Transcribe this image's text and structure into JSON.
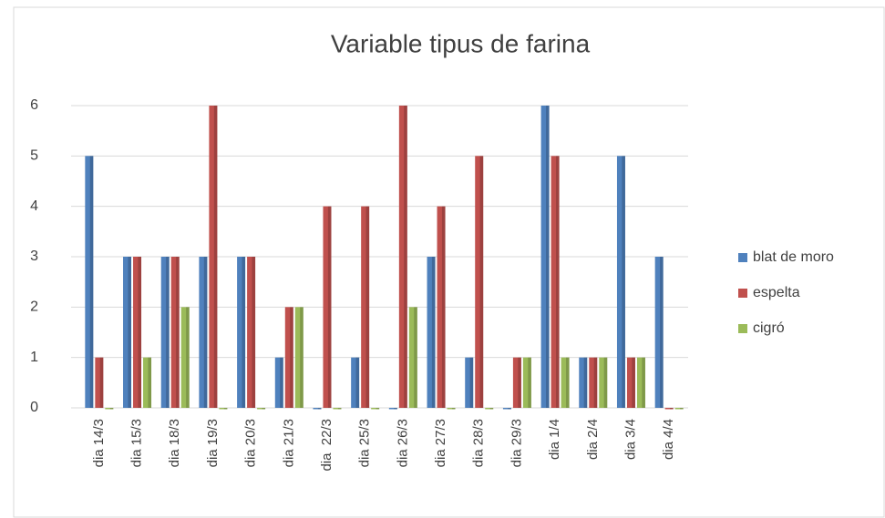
{
  "chart_data": {
    "type": "bar",
    "title": "Variable tipus de farina",
    "categories": [
      "dia 14/3",
      "dia 15/3",
      "dia 18/3",
      "dia 19/3",
      "dia 20/3",
      "dia 21/3",
      "dia  22/3",
      "dia 25/3",
      "dia 26/3",
      "dia 27/3",
      "dia 28/3",
      "dia 29/3",
      "dia 1/4",
      "dia 2/4",
      "dia 3/4",
      "dia 4/4"
    ],
    "series": [
      {
        "name": "blat de moro",
        "color": "#4f81bd",
        "values": [
          5,
          3,
          3,
          3,
          3,
          1,
          0,
          1,
          0,
          3,
          1,
          0,
          6,
          1,
          5,
          3
        ]
      },
      {
        "name": "espelta",
        "color": "#c0504d",
        "values": [
          1,
          3,
          3,
          6,
          3,
          2,
          4,
          4,
          6,
          4,
          5,
          1,
          5,
          1,
          1,
          0
        ]
      },
      {
        "name": "cigró",
        "color": "#9bbb59",
        "values": [
          0,
          1,
          2,
          0,
          0,
          2,
          0,
          0,
          2,
          0,
          0,
          1,
          1,
          1,
          1,
          0
        ]
      }
    ],
    "ylim": [
      0,
      6
    ],
    "yticks": [
      0,
      1,
      2,
      3,
      4,
      5,
      6
    ],
    "grid": true,
    "legend": "right"
  }
}
